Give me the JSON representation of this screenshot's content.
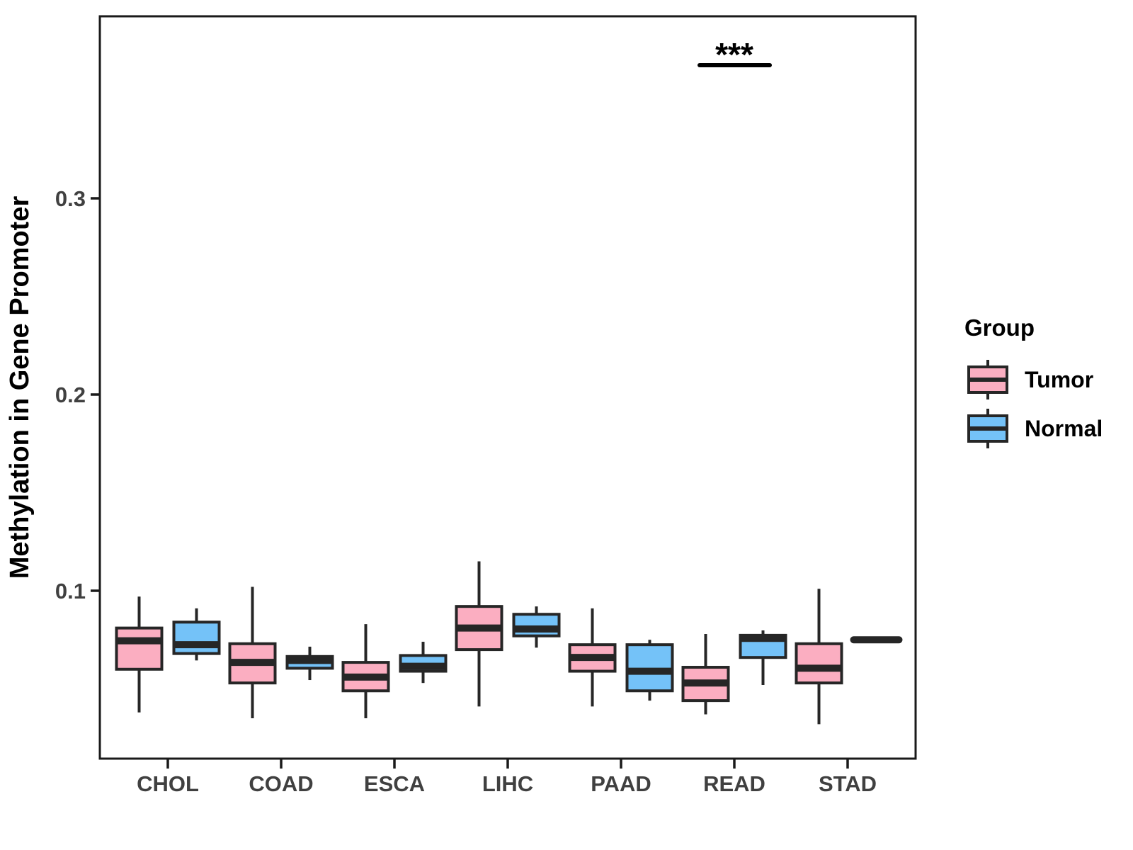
{
  "chart_data": {
    "type": "boxplot",
    "title": "",
    "ylabel": "Methylation in Gene Promoter",
    "xlabel": "",
    "ylim": [
      0.014,
      0.393
    ],
    "grid": false,
    "legend_position": "right",
    "yticks": [
      {
        "label": "0.1",
        "value": 0.1
      },
      {
        "label": "0.2",
        "value": 0.2
      },
      {
        "label": "0.3",
        "value": 0.3
      }
    ],
    "categories": [
      "CHOL",
      "COAD",
      "ESCA",
      "LIHC",
      "PAAD",
      "READ",
      "STAD"
    ],
    "series": [
      {
        "name": "Tumor",
        "color": "#FBAEC1",
        "boxes": [
          {
            "category": "CHOL",
            "min": 0.038,
            "q1": 0.06,
            "median": 0.0745,
            "q3": 0.081,
            "max": 0.097
          },
          {
            "category": "COAD",
            "min": 0.035,
            "q1": 0.053,
            "median": 0.0635,
            "q3": 0.073,
            "max": 0.102
          },
          {
            "category": "ESCA",
            "min": 0.035,
            "q1": 0.049,
            "median": 0.056,
            "q3": 0.0635,
            "max": 0.083
          },
          {
            "category": "LIHC",
            "min": 0.041,
            "q1": 0.07,
            "median": 0.081,
            "q3": 0.092,
            "max": 0.115
          },
          {
            "category": "PAAD",
            "min": 0.041,
            "q1": 0.059,
            "median": 0.066,
            "q3": 0.0725,
            "max": 0.091
          },
          {
            "category": "READ",
            "min": 0.037,
            "q1": 0.044,
            "median": 0.053,
            "q3": 0.061,
            "max": 0.078
          },
          {
            "category": "STAD",
            "min": 0.032,
            "q1": 0.053,
            "median": 0.0605,
            "q3": 0.073,
            "max": 0.101
          }
        ]
      },
      {
        "name": "Normal",
        "color": "#74C2F8",
        "boxes": [
          {
            "category": "CHOL",
            "min": 0.0645,
            "q1": 0.068,
            "median": 0.0725,
            "q3": 0.084,
            "max": 0.091
          },
          {
            "category": "COAD",
            "min": 0.0545,
            "q1": 0.0605,
            "median": 0.0645,
            "q3": 0.0665,
            "max": 0.0715
          },
          {
            "category": "ESCA",
            "min": 0.053,
            "q1": 0.059,
            "median": 0.0615,
            "q3": 0.067,
            "max": 0.074
          },
          {
            "category": "LIHC",
            "min": 0.071,
            "q1": 0.077,
            "median": 0.0805,
            "q3": 0.088,
            "max": 0.092
          },
          {
            "category": "PAAD",
            "min": 0.044,
            "q1": 0.049,
            "median": 0.059,
            "q3": 0.0725,
            "max": 0.075
          },
          {
            "category": "READ",
            "min": 0.052,
            "q1": 0.066,
            "median": 0.0757,
            "q3": 0.0773,
            "max": 0.0798
          },
          {
            "category": "STAD",
            "min": null,
            "q1": null,
            "median": 0.075,
            "q3": null,
            "max": null
          }
        ]
      }
    ],
    "annotations": [
      {
        "type": "significance",
        "label": "***",
        "category": "READ"
      }
    ],
    "legend": {
      "title": "Group",
      "items": [
        {
          "label": "Tumor",
          "color": "#FBAEC1"
        },
        {
          "label": "Normal",
          "color": "#74C2F8"
        }
      ]
    }
  },
  "colors": {
    "box_stroke": "#262626",
    "tick_text": "#404040",
    "axis_title_text": "#000000",
    "panel_border": "#1a1a1a",
    "background": "#ffffff"
  }
}
